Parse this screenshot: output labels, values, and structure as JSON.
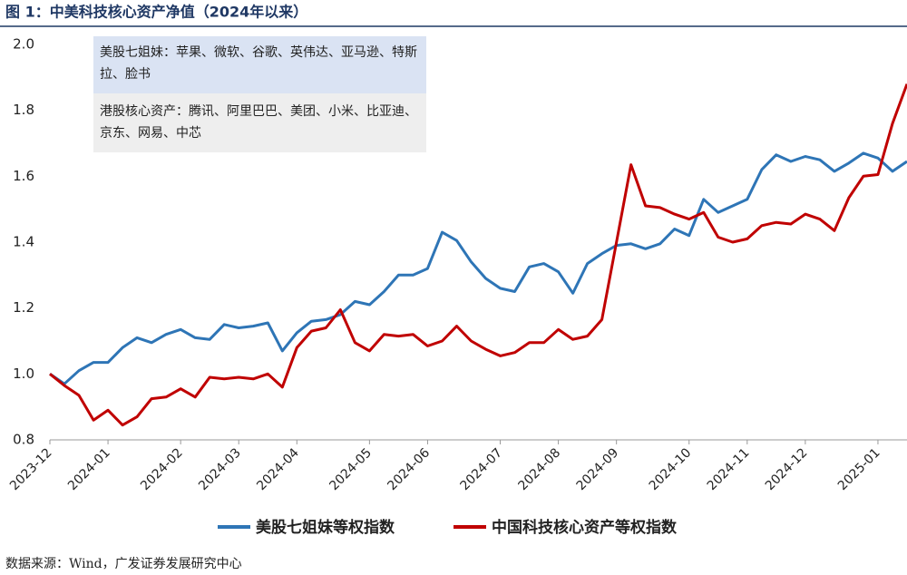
{
  "chart_data": {
    "type": "line",
    "title": "图 1：中美科技核心资产净值（2024年以来）",
    "annotations": [
      "美股七姐妹：苹果、微软、谷歌、英伟达、亚马逊、特斯拉、脸书",
      "港股核心资产：腾讯、阿里巴巴、美团、小米、比亚迪、京东、网易、中芯"
    ],
    "source": "数据来源：Wind，广发证券发展研究中心",
    "categories": [
      "2023-12",
      null,
      null,
      null,
      "2024-01",
      null,
      null,
      null,
      null,
      "2024-02",
      null,
      null,
      null,
      "2024-03",
      null,
      null,
      null,
      "2024-04",
      null,
      null,
      null,
      null,
      "2024-05",
      null,
      null,
      null,
      "2024-06",
      null,
      null,
      null,
      null,
      "2024-07",
      null,
      null,
      null,
      "2024-08",
      null,
      null,
      null,
      "2024-09",
      null,
      null,
      null,
      null,
      "2024-10",
      null,
      null,
      null,
      "2024-11",
      null,
      null,
      null,
      "2024-12",
      null,
      null,
      null,
      null,
      "2025-01",
      null,
      null
    ],
    "series": [
      {
        "name": "美股七姐妹等权指数",
        "color": "#2e75b6",
        "values": [
          1.0,
          0.97,
          1.01,
          1.035,
          1.035,
          1.08,
          1.11,
          1.095,
          1.12,
          1.135,
          1.11,
          1.105,
          1.15,
          1.14,
          1.145,
          1.155,
          1.07,
          1.125,
          1.16,
          1.165,
          1.18,
          1.22,
          1.21,
          1.25,
          1.3,
          1.3,
          1.32,
          1.43,
          1.405,
          1.34,
          1.29,
          1.26,
          1.25,
          1.325,
          1.335,
          1.31,
          1.245,
          1.335,
          1.365,
          1.39,
          1.395,
          1.38,
          1.395,
          1.44,
          1.42,
          1.53,
          1.49,
          1.51,
          1.53,
          1.62,
          1.665,
          1.645,
          1.66,
          1.65,
          1.615,
          1.64,
          1.67,
          1.655,
          1.615,
          1.645
        ]
      },
      {
        "name": "中国科技核心资产等权指数",
        "color": "#c00000",
        "values": [
          1.0,
          0.965,
          0.935,
          0.86,
          0.89,
          0.845,
          0.87,
          0.925,
          0.93,
          0.955,
          0.93,
          0.99,
          0.985,
          0.99,
          0.985,
          1.0,
          0.96,
          1.08,
          1.13,
          1.14,
          1.195,
          1.095,
          1.07,
          1.12,
          1.115,
          1.12,
          1.085,
          1.1,
          1.145,
          1.1,
          1.075,
          1.055,
          1.065,
          1.095,
          1.095,
          1.135,
          1.105,
          1.115,
          1.165,
          1.4,
          1.635,
          1.51,
          1.505,
          1.485,
          1.47,
          1.49,
          1.415,
          1.4,
          1.41,
          1.45,
          1.46,
          1.455,
          1.485,
          1.47,
          1.435,
          1.535,
          1.6,
          1.605,
          1.76,
          1.88
        ]
      }
    ],
    "ylim": [
      0.8,
      2.0
    ],
    "yticks": [
      {
        "value": 0.8,
        "label": "0.8"
      },
      {
        "value": 1,
        "label": "1.0"
      },
      {
        "value": 1.2,
        "label": "1.2"
      },
      {
        "value": 1.4,
        "label": "1.4"
      },
      {
        "value": 1.6,
        "label": "1.6"
      },
      {
        "value": 1.8,
        "label": "1.8"
      },
      {
        "value": 2,
        "label": "2.0"
      }
    ],
    "grid": false
  }
}
